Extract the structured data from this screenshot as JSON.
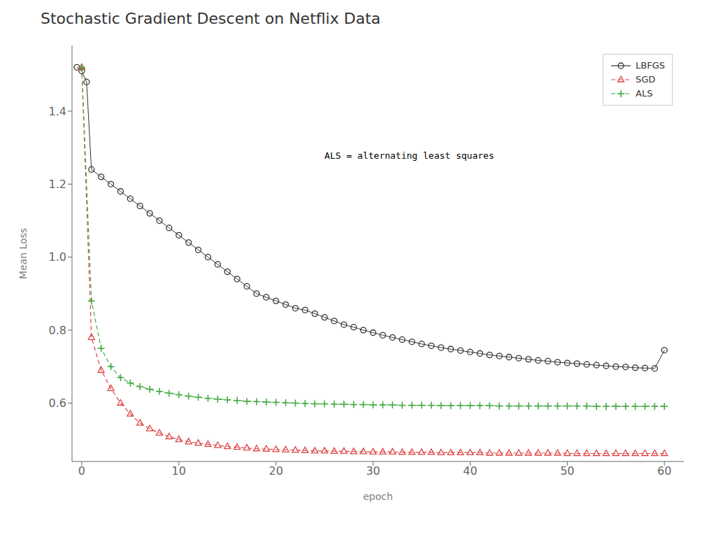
{
  "chart_data": {
    "type": "line",
    "title": "Stochastic Gradient Descent on Netflix Data",
    "xlabel": "epoch",
    "ylabel": "Mean Loss",
    "xlim": [
      -1,
      62
    ],
    "ylim": [
      0.44,
      1.58
    ],
    "xticks": [
      0,
      10,
      20,
      30,
      40,
      50,
      60
    ],
    "yticks": [
      0.6,
      0.8,
      {
        "value": 1,
        "label": "1.0"
      },
      1.2,
      1.4
    ],
    "grid": false,
    "legend": "upper right",
    "annotations": [
      {
        "text": "ALS = alternating least squares",
        "x": 25,
        "y": 1.27
      }
    ],
    "series": [
      {
        "name": "LBFGS",
        "color": "#333333",
        "marker": "circle",
        "line_style": "solid",
        "x": [
          -0.5,
          0,
          0.5,
          1,
          2,
          3,
          4,
          5,
          6,
          7,
          8,
          9,
          10,
          11,
          12,
          13,
          14,
          15,
          16,
          17,
          18,
          19,
          20,
          21,
          22,
          23,
          24,
          25,
          26,
          27,
          28,
          29,
          30,
          31,
          32,
          33,
          34,
          35,
          36,
          37,
          38,
          39,
          40,
          41,
          42,
          43,
          44,
          45,
          46,
          47,
          48,
          49,
          50,
          51,
          52,
          53,
          54,
          55,
          56,
          57,
          58,
          59,
          60
        ],
        "values": [
          1.52,
          1.51,
          1.48,
          1.24,
          1.22,
          1.2,
          1.18,
          1.16,
          1.14,
          1.12,
          1.1,
          1.08,
          1.06,
          1.04,
          1.02,
          1.0,
          0.98,
          0.96,
          0.94,
          0.92,
          0.9,
          0.89,
          0.88,
          0.87,
          0.86,
          0.855,
          0.845,
          0.835,
          0.825,
          0.815,
          0.808,
          0.8,
          0.793,
          0.786,
          0.78,
          0.774,
          0.768,
          0.762,
          0.757,
          0.752,
          0.748,
          0.744,
          0.74,
          0.736,
          0.732,
          0.729,
          0.726,
          0.723,
          0.72,
          0.717,
          0.715,
          0.712,
          0.71,
          0.708,
          0.706,
          0.704,
          0.702,
          0.7,
          0.699,
          0.697,
          0.696,
          0.695,
          0.745
        ]
      },
      {
        "name": "SGD",
        "color": "#dd4444",
        "marker": "triangle",
        "line_style": "dashed",
        "x": [
          0,
          1,
          2,
          3,
          4,
          5,
          6,
          7,
          8,
          9,
          10,
          11,
          12,
          13,
          14,
          15,
          16,
          17,
          18,
          19,
          20,
          21,
          22,
          23,
          24,
          25,
          26,
          27,
          28,
          29,
          30,
          31,
          32,
          33,
          34,
          35,
          36,
          37,
          38,
          39,
          40,
          41,
          42,
          43,
          44,
          45,
          46,
          47,
          48,
          49,
          50,
          51,
          52,
          53,
          54,
          55,
          56,
          57,
          58,
          59,
          60
        ],
        "values": [
          1.52,
          0.78,
          0.69,
          0.64,
          0.6,
          0.57,
          0.545,
          0.53,
          0.518,
          0.508,
          0.5,
          0.494,
          0.49,
          0.487,
          0.484,
          0.481,
          0.479,
          0.477,
          0.475,
          0.474,
          0.473,
          0.472,
          0.471,
          0.47,
          0.469,
          0.469,
          0.468,
          0.468,
          0.467,
          0.467,
          0.466,
          0.466,
          0.466,
          0.465,
          0.465,
          0.465,
          0.465,
          0.464,
          0.464,
          0.464,
          0.464,
          0.464,
          0.463,
          0.463,
          0.463,
          0.463,
          0.463,
          0.463,
          0.463,
          0.463,
          0.462,
          0.462,
          0.462,
          0.462,
          0.462,
          0.462,
          0.462,
          0.462,
          0.462,
          0.462,
          0.462
        ]
      },
      {
        "name": "ALS",
        "color": "#44aa44",
        "marker": "plus",
        "line_style": "dashed",
        "x": [
          0,
          1,
          2,
          3,
          4,
          5,
          6,
          7,
          8,
          9,
          10,
          11,
          12,
          13,
          14,
          15,
          16,
          17,
          18,
          19,
          20,
          21,
          22,
          23,
          24,
          25,
          26,
          27,
          28,
          29,
          30,
          31,
          32,
          33,
          34,
          35,
          36,
          37,
          38,
          39,
          40,
          41,
          42,
          43,
          44,
          45,
          46,
          47,
          48,
          49,
          50,
          51,
          52,
          53,
          54,
          55,
          56,
          57,
          58,
          59,
          60
        ],
        "values": [
          1.52,
          0.88,
          0.75,
          0.7,
          0.67,
          0.655,
          0.645,
          0.638,
          0.632,
          0.627,
          0.623,
          0.619,
          0.616,
          0.613,
          0.611,
          0.609,
          0.607,
          0.605,
          0.604,
          0.603,
          0.602,
          0.601,
          0.6,
          0.599,
          0.598,
          0.598,
          0.597,
          0.597,
          0.596,
          0.596,
          0.595,
          0.595,
          0.595,
          0.594,
          0.594,
          0.594,
          0.594,
          0.593,
          0.593,
          0.593,
          0.593,
          0.593,
          0.593,
          0.592,
          0.592,
          0.592,
          0.592,
          0.592,
          0.592,
          0.592,
          0.592,
          0.592,
          0.592,
          0.591,
          0.591,
          0.591,
          0.591,
          0.591,
          0.591,
          0.591,
          0.591
        ]
      }
    ]
  }
}
